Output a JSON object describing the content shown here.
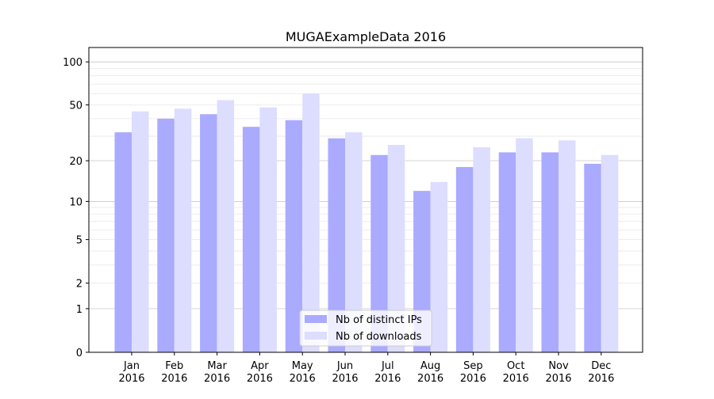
{
  "chart_data": {
    "type": "bar",
    "title": "MUGAExampleData 2016",
    "xlabel": "",
    "ylabel": "",
    "yscale": "log(1+y)",
    "ylim": [
      0,
      126
    ],
    "yticks": [
      0,
      1,
      2,
      5,
      10,
      20,
      50,
      100
    ],
    "grid": true,
    "legend_position": "bottom-center",
    "categories": [
      "Jan\n2016",
      "Feb\n2016",
      "Mar\n2016",
      "Apr\n2016",
      "May\n2016",
      "Jun\n2016",
      "Jul\n2016",
      "Aug\n2016",
      "Sep\n2016",
      "Oct\n2016",
      "Nov\n2016",
      "Dec\n2016"
    ],
    "series": [
      {
        "name": "Nb of distinct IPs",
        "color": "#aaaaff",
        "values": [
          32,
          40,
          43,
          35,
          39,
          29,
          22,
          12,
          18,
          23,
          23,
          19
        ]
      },
      {
        "name": "Nb of downloads",
        "color": "#ddddff",
        "values": [
          45,
          47,
          54,
          48,
          60,
          32,
          26,
          14,
          25,
          29,
          28,
          22
        ]
      }
    ]
  }
}
